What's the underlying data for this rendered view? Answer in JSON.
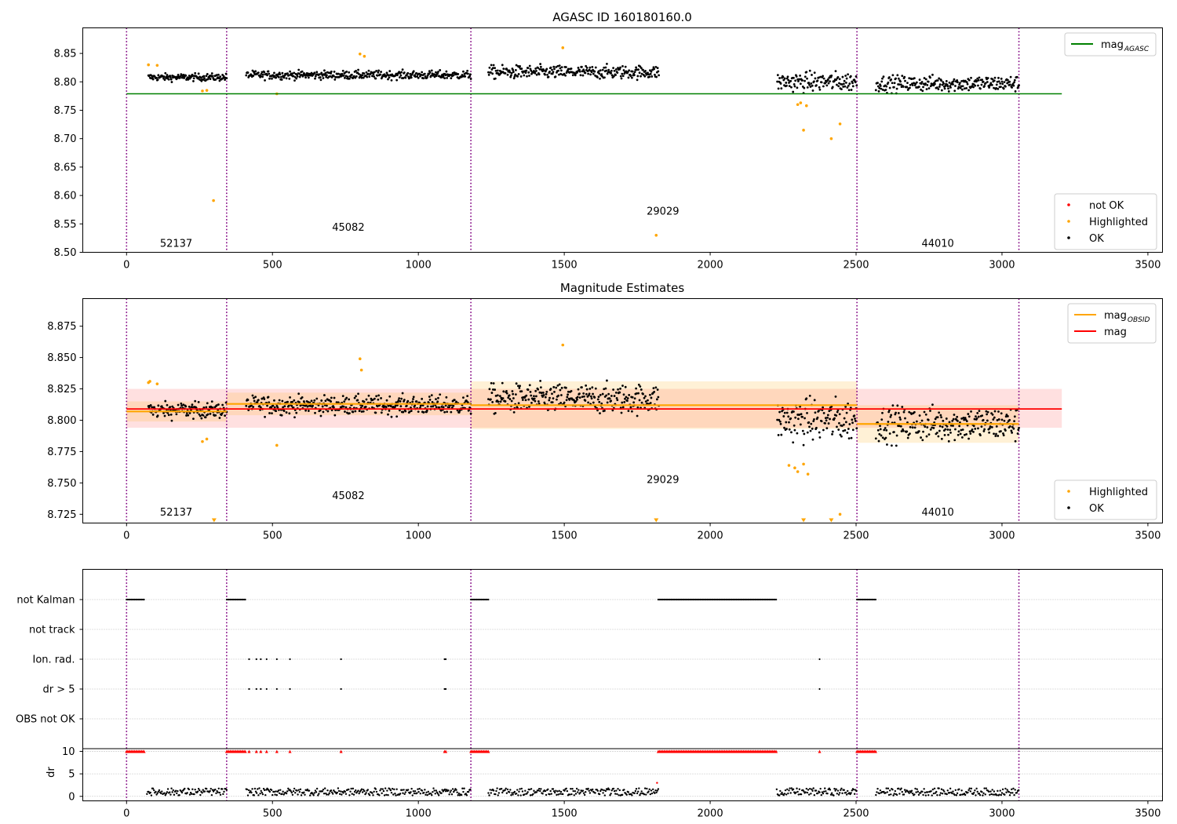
{
  "chart_data": [
    {
      "type": "scatter",
      "title": "AGASC ID 160180160.0",
      "xlim": [
        -150,
        3550
      ],
      "ylim": [
        8.5,
        8.895
      ],
      "xticks": [
        0,
        500,
        1000,
        1500,
        2000,
        2500,
        3000,
        3500
      ],
      "yticks": [
        8.5,
        8.55,
        8.6,
        8.65,
        8.7,
        8.75,
        8.8,
        8.85
      ],
      "xtick_labels": [
        "0",
        "500",
        "1000",
        "1500",
        "2000",
        "2500",
        "3000",
        "3500"
      ],
      "ytick_labels": [
        "8.50",
        "8.55",
        "8.60",
        "8.65",
        "8.70",
        "8.75",
        "8.80",
        "8.85"
      ],
      "obsid_boundaries": [
        0,
        343,
        1180,
        2503,
        3058
      ],
      "obsid_labels": [
        {
          "text": "52137",
          "x": 170,
          "y": 8.51
        },
        {
          "text": "45082",
          "x": 760,
          "y": 8.538
        },
        {
          "text": "29029",
          "x": 1838,
          "y": 8.566
        },
        {
          "text": "44010",
          "x": 2780,
          "y": 8.51
        }
      ],
      "hlines": [
        {
          "name": "mag_AGASC",
          "y": 8.779,
          "x": [
            0,
            3205
          ],
          "color": "#008000"
        }
      ],
      "segments": [
        {
          "x": [
            75,
            343
          ],
          "mean": 8.808,
          "sd": 0.006
        },
        {
          "x": [
            410,
            1180
          ],
          "mean": 8.812,
          "sd": 0.007
        },
        {
          "x": [
            1240,
            1825
          ],
          "mean": 8.817,
          "sd": 0.011
        },
        {
          "x": [
            2230,
            2503
          ],
          "mean": 8.8,
          "sd": 0.016
        },
        {
          "x": [
            2568,
            3058
          ],
          "mean": 8.797,
          "sd": 0.013
        }
      ],
      "highlighted_points": [
        [
          75,
          8.83
        ],
        [
          105,
          8.829
        ],
        [
          260,
          8.784
        ],
        [
          275,
          8.785
        ],
        [
          298,
          8.591
        ],
        [
          515,
          8.779
        ],
        [
          800,
          8.849
        ],
        [
          815,
          8.845
        ],
        [
          1495,
          8.86
        ],
        [
          1815,
          8.53
        ],
        [
          2320,
          8.715
        ],
        [
          2415,
          8.7
        ],
        [
          2445,
          8.726
        ],
        [
          2300,
          8.76
        ],
        [
          2310,
          8.763
        ],
        [
          2330,
          8.758
        ]
      ],
      "legend_upper": [
        {
          "label": "mag",
          "sub": "AGASC",
          "color": "#008000"
        }
      ],
      "legend_lower": [
        {
          "label": "not OK",
          "color": "#ff0000"
        },
        {
          "label": "Highlighted",
          "color": "#ffa500"
        },
        {
          "label": "OK",
          "color": "#000000"
        }
      ],
      "legend_upper_position": "top-right",
      "legend_lower_position": "bottom-right"
    },
    {
      "type": "scatter",
      "title": "Magnitude Estimates",
      "xlim": [
        -150,
        3550
      ],
      "ylim": [
        8.718,
        8.897
      ],
      "xticks": [
        0,
        500,
        1000,
        1500,
        2000,
        2500,
        3000,
        3500
      ],
      "yticks": [
        8.725,
        8.75,
        8.775,
        8.8,
        8.825,
        8.85,
        8.875
      ],
      "xtick_labels": [
        "0",
        "500",
        "1000",
        "1500",
        "2000",
        "2500",
        "3000",
        "3500"
      ],
      "ytick_labels": [
        "8.725",
        "8.750",
        "8.775",
        "8.800",
        "8.825",
        "8.850",
        "8.875"
      ],
      "obsid_boundaries": [
        0,
        343,
        1180,
        2503,
        3058
      ],
      "obsid_labels": [
        {
          "text": "52137",
          "x": 170,
          "y": 8.724
        },
        {
          "text": "45082",
          "x": 760,
          "y": 8.737
        },
        {
          "text": "29029",
          "x": 1838,
          "y": 8.75
        },
        {
          "text": "44010",
          "x": 2780,
          "y": 8.724
        }
      ],
      "mag": {
        "name": "mag",
        "y": 8.809,
        "band": [
          8.794,
          8.825
        ],
        "x": [
          0,
          3205
        ],
        "color": "#ff0000"
      },
      "mag_obsid": [
        {
          "x": [
            0,
            343
          ],
          "y": 8.807,
          "band": [
            8.799,
            8.815
          ]
        },
        {
          "x": [
            343,
            1180
          ],
          "y": 8.813,
          "band": [
            8.804,
            8.822
          ]
        },
        {
          "x": [
            1180,
            2503
          ],
          "y": 8.812,
          "band": [
            8.793,
            8.831
          ]
        },
        {
          "x": [
            2503,
            3058
          ],
          "y": 8.797,
          "band": [
            8.782,
            8.812
          ]
        }
      ],
      "highlighted_points": [
        [
          75,
          8.83
        ],
        [
          80,
          8.831
        ],
        [
          105,
          8.829
        ],
        [
          260,
          8.783
        ],
        [
          275,
          8.785
        ],
        [
          515,
          8.78
        ],
        [
          800,
          8.849
        ],
        [
          805,
          8.84
        ],
        [
          1495,
          8.86
        ],
        [
          2270,
          8.764
        ],
        [
          2290,
          8.762
        ],
        [
          2300,
          8.759
        ],
        [
          2320,
          8.765
        ],
        [
          2335,
          8.757
        ],
        [
          2445,
          8.725
        ]
      ],
      "below_range_markers": [
        300,
        1815,
        2320,
        2415
      ],
      "legend_upper": [
        {
          "label": "mag",
          "sub": "OBSID",
          "color": "#ffa500"
        },
        {
          "label": "mag",
          "sub": "",
          "color": "#ff0000"
        }
      ],
      "legend_lower": [
        {
          "label": "Highlighted",
          "color": "#ffa500"
        },
        {
          "label": "OK",
          "color": "#000000"
        }
      ],
      "legend_upper_position": "top-right",
      "legend_lower_position": "bottom-right"
    },
    {
      "type": "scatter",
      "title": "",
      "xlim": [
        -150,
        3550
      ],
      "xticks": [
        0,
        500,
        1000,
        1500,
        2000,
        2500,
        3000,
        3500
      ],
      "xtick_labels": [
        "0",
        "500",
        "1000",
        "1500",
        "2000",
        "2500",
        "3000",
        "3500"
      ],
      "obsid_boundaries": [
        0,
        343,
        1180,
        2503,
        3058
      ],
      "flag_rows": [
        {
          "label": "not Kalman",
          "ranges": [
            [
              0,
              60
            ],
            [
              343,
              410
            ],
            [
              1180,
              1240
            ],
            [
              1822,
              2228
            ],
            [
              2503,
              2568
            ]
          ],
          "points": []
        },
        {
          "label": "not track",
          "ranges": [],
          "points": []
        },
        {
          "label": "Ion. rad.",
          "ranges": [
            [
              1090,
              1096
            ]
          ],
          "points": [
            420,
            445,
            460,
            480,
            515,
            560,
            735,
            2375
          ]
        },
        {
          "label": "dr > 5",
          "ranges": [
            [
              1090,
              1096
            ]
          ],
          "points": [
            420,
            445,
            460,
            480,
            515,
            560,
            735,
            2375
          ]
        },
        {
          "label": "OBS not OK",
          "ranges": [],
          "points": []
        }
      ],
      "dr": {
        "ylabel": "dr",
        "yticks": [
          0,
          5,
          10
        ],
        "ytick_labels": [
          "0",
          "5",
          "10"
        ],
        "ylim": [
          -1,
          10.6
        ],
        "clipped_value": 10,
        "clipped_ranges": [
          [
            0,
            60
          ],
          [
            343,
            410
          ],
          [
            1180,
            1240
          ],
          [
            1822,
            2228
          ],
          [
            2503,
            2568
          ],
          [
            1090,
            1096
          ]
        ],
        "clipped_points": [
          420,
          445,
          460,
          480,
          515,
          560,
          735,
          2375
        ],
        "outlier_points": [
          [
            1818,
            3
          ]
        ],
        "ok_ranges": [
          [
            70,
            343
          ],
          [
            410,
            1180
          ],
          [
            1240,
            1822
          ],
          [
            2228,
            2503
          ],
          [
            2568,
            3058
          ]
        ],
        "ok_level": 1.0
      }
    }
  ]
}
